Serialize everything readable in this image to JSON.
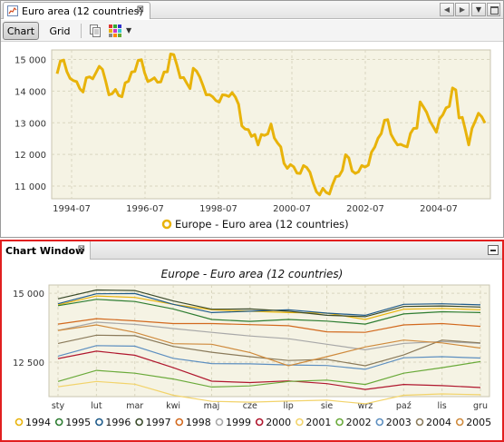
{
  "window": {
    "tab_title": "Euro area (12 countries)",
    "close_glyph": "⊠",
    "nav_prev": "◀",
    "nav_next": "▶",
    "nav_menu": "▼"
  },
  "toolbar": {
    "chart_label": "Chart",
    "grid_label": "Grid",
    "dropdown_glyph": "▼"
  },
  "chart_window": {
    "tab_title": "Chart Window",
    "close_glyph": "⊠"
  },
  "colors": {
    "series_main": "#e8b30a",
    "plot_bg": "#f5f3e4",
    "grid": "#d9d6bf",
    "highlight_border": "#e11f1f"
  },
  "chart_data": [
    {
      "type": "line",
      "title": "",
      "ylim": [
        10600,
        15300
      ],
      "y_ticks": [
        11000,
        12000,
        13000,
        14000,
        15000
      ],
      "y_tick_labels": [
        "11 000",
        "12 000",
        "13 000",
        "14 000",
        "15 000"
      ],
      "x_tick_labels": [
        "1994-07",
        "1996-07",
        "1998-07",
        "2000-07",
        "2002-07",
        "2004-07"
      ],
      "grid": true,
      "legend_position": "bottom",
      "series": [
        {
          "name": "Europe - Euro area (12 countries)",
          "color": "#e8b30a",
          "values": [
            14550,
            14950,
            14980,
            14620,
            14400,
            14330,
            14300,
            14080,
            13970,
            14420,
            14450,
            14390,
            14580,
            14780,
            14680,
            14310,
            13880,
            13920,
            14050,
            13860,
            13820,
            14260,
            14310,
            14600,
            14620,
            14970,
            14990,
            14580,
            14300,
            14350,
            14420,
            14280,
            14290,
            14600,
            14610,
            15170,
            15150,
            14810,
            14420,
            14430,
            14250,
            14080,
            14720,
            14630,
            14450,
            14180,
            13880,
            13890,
            13820,
            13700,
            13650,
            13880,
            13870,
            13830,
            13950,
            13810,
            13580,
            12900,
            12800,
            12780,
            12570,
            12630,
            12300,
            12630,
            12600,
            12650,
            12960,
            12520,
            12360,
            12240,
            11720,
            11560,
            11680,
            11610,
            11410,
            11400,
            11650,
            11590,
            11440,
            11100,
            10820,
            10720,
            10930,
            10800,
            10750,
            11050,
            11300,
            11320,
            11500,
            11990,
            11890,
            11480,
            11400,
            11450,
            11650,
            11600,
            11660,
            12070,
            12230,
            12510,
            12660,
            13080,
            13100,
            12640,
            12450,
            12300,
            12320,
            12270,
            12240,
            12660,
            12820,
            12830,
            13660,
            13500,
            13330,
            13060,
            12880,
            12700,
            13120,
            13250,
            13470,
            13520,
            14100,
            14040,
            13150,
            13170,
            12760,
            12300,
            12820,
            13050,
            13300,
            13190,
            12990
          ]
        }
      ]
    },
    {
      "type": "line",
      "title": "Europe - Euro area (12 countries)",
      "ylim": [
        11250,
        15300
      ],
      "y_ticks": [
        12500,
        15000
      ],
      "y_tick_labels": [
        "12 500",
        "15 000"
      ],
      "categories": [
        "sty",
        "lut",
        "mar",
        "kwi",
        "maj",
        "cze",
        "lip",
        "sie",
        "wrz",
        "paź",
        "lis",
        "gru"
      ],
      "grid": true,
      "legend_position": "bottom",
      "series": [
        {
          "name": "1994",
          "color": "#e8b30a",
          "values": [
            14580,
            14900,
            14850,
            14600,
            14400,
            14350,
            14300,
            14280,
            14050,
            14420,
            14450,
            14400
          ]
        },
        {
          "name": "1995",
          "color": "#2e7d32",
          "values": [
            14550,
            14780,
            14700,
            14430,
            14050,
            13980,
            14050,
            13990,
            13880,
            14250,
            14330,
            14300
          ]
        },
        {
          "name": "1996",
          "color": "#1f5b8a",
          "values": [
            14620,
            14980,
            14990,
            14600,
            14300,
            14350,
            14400,
            14280,
            14200,
            14600,
            14620,
            14580
          ]
        },
        {
          "name": "1997",
          "color": "#3a4a2a",
          "values": [
            14800,
            15120,
            15100,
            14720,
            14420,
            14430,
            14350,
            14200,
            14150,
            14520,
            14540,
            14500
          ]
        },
        {
          "name": "1998",
          "color": "#d2691e",
          "values": [
            13880,
            14080,
            14000,
            13900,
            13900,
            13860,
            13820,
            13600,
            13580,
            13850,
            13900,
            13800
          ]
        },
        {
          "name": "1999",
          "color": "#a8a8a8",
          "values": [
            13650,
            13950,
            13870,
            13720,
            13580,
            13450,
            13350,
            13150,
            12950,
            13180,
            13250,
            13180
          ]
        },
        {
          "name": "2000",
          "color": "#b0172e",
          "values": [
            12630,
            12900,
            12750,
            12300,
            11810,
            11760,
            11820,
            11720,
            11510,
            11690,
            11650,
            11580
          ]
        },
        {
          "name": "2001",
          "color": "#f2d36a",
          "values": [
            11610,
            11800,
            11700,
            11300,
            11080,
            11050,
            11090,
            11120,
            10990,
            11300,
            11350,
            11320
          ]
        },
        {
          "name": "2002",
          "color": "#6aaa3a",
          "values": [
            11800,
            12200,
            12100,
            11890,
            11600,
            11640,
            11800,
            11850,
            11690,
            12100,
            12300,
            12520
          ]
        },
        {
          "name": "2003",
          "color": "#5d8fc0",
          "values": [
            12720,
            13100,
            13080,
            12640,
            12450,
            12440,
            12400,
            12380,
            12240,
            12660,
            12700,
            12650
          ]
        },
        {
          "name": "2004",
          "color": "#8a7a5a",
          "values": [
            13180,
            13480,
            13460,
            13070,
            12860,
            12700,
            12560,
            12600,
            12370,
            12760,
            13300,
            13200
          ]
        },
        {
          "name": "2005",
          "color": "#cf8a3c",
          "values": [
            13650,
            13850,
            13580,
            13170,
            13150,
            12850,
            12370,
            12700,
            13050,
            13300,
            13200,
            13010
          ]
        }
      ]
    }
  ]
}
